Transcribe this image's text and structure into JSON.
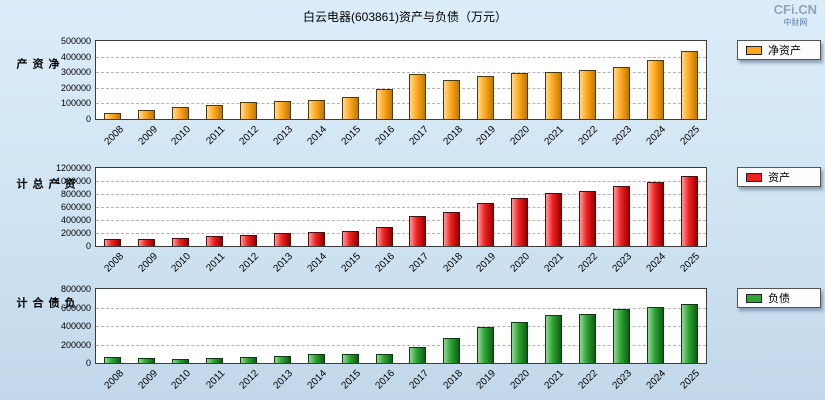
{
  "page": {
    "title": "白云电器(603861)资产与负债（万元）",
    "watermark": {
      "logo": "CFi.CN",
      "sub": "中财网"
    }
  },
  "chart_data": [
    {
      "type": "bar",
      "name": "net-assets",
      "ylabel": "净资产",
      "legend": "净资产",
      "legend_position": "right",
      "grid": true,
      "categories": [
        "2008",
        "2009",
        "2010",
        "2011",
        "2012",
        "2013",
        "2014",
        "2015",
        "2016",
        "2017",
        "2018",
        "2019",
        "2020",
        "2021",
        "2022",
        "2023",
        "2024",
        "2025"
      ],
      "values": [
        40000,
        55000,
        75000,
        90000,
        108000,
        118000,
        123000,
        138000,
        195000,
        288000,
        252000,
        275000,
        298000,
        303000,
        315000,
        335000,
        378000,
        438000
      ],
      "ylim": [
        0,
        500000
      ],
      "ytick_step": 100000,
      "colors": {
        "main": "#FFA81F",
        "light": "#FFD98F",
        "dark": "#C07800",
        "border": "#4a3a10"
      }
    },
    {
      "type": "bar",
      "name": "total-assets",
      "ylabel": "资产总计",
      "legend": "资产",
      "legend_position": "right",
      "grid": true,
      "categories": [
        "2008",
        "2009",
        "2010",
        "2011",
        "2012",
        "2013",
        "2014",
        "2015",
        "2016",
        "2017",
        "2018",
        "2019",
        "2020",
        "2021",
        "2022",
        "2023",
        "2024",
        "2025"
      ],
      "values": [
        105000,
        107000,
        123000,
        148000,
        168000,
        198000,
        218000,
        230000,
        293000,
        463000,
        522000,
        665000,
        738000,
        823000,
        845000,
        920000,
        978000,
        1076000
      ],
      "ylim": [
        0,
        1200000
      ],
      "ytick_step": 200000,
      "colors": {
        "main": "#EE2222",
        "light": "#FF9A9A",
        "dark": "#9B0000",
        "border": "#4a1010"
      }
    },
    {
      "type": "bar",
      "name": "liabilities",
      "ylabel": "负债合计",
      "legend": "负债",
      "legend_position": "right",
      "grid": true,
      "categories": [
        "2008",
        "2009",
        "2010",
        "2011",
        "2012",
        "2013",
        "2014",
        "2015",
        "2016",
        "2017",
        "2018",
        "2019",
        "2020",
        "2021",
        "2022",
        "2023",
        "2024",
        "2025"
      ],
      "values": [
        65000,
        52000,
        48000,
        58000,
        60000,
        80000,
        95000,
        92000,
        98000,
        175000,
        270000,
        390000,
        440000,
        520000,
        530000,
        585000,
        600000,
        638000
      ],
      "ylim": [
        0,
        800000
      ],
      "ytick_step": 200000,
      "colors": {
        "main": "#2FA334",
        "light": "#93D894",
        "dark": "#0E5E13",
        "border": "#0f3a12"
      }
    }
  ]
}
